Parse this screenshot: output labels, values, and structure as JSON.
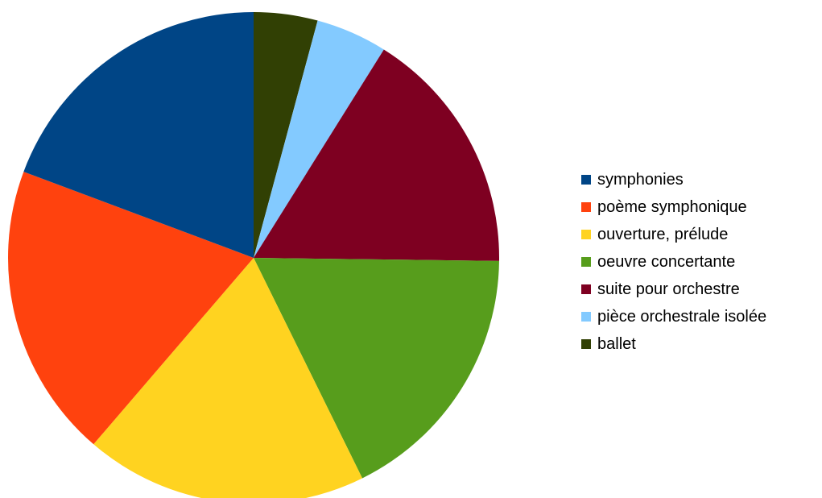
{
  "chart_data": {
    "type": "pie",
    "title": "",
    "start_angle_deg": 90,
    "direction": "clockwise",
    "legend_position": "right",
    "slices": [
      {
        "label": "ballet",
        "value": 4.2,
        "color": "#314004"
      },
      {
        "label": "pièce orchestrale isolée",
        "value": 4.7,
        "color": "#83caff"
      },
      {
        "label": "suite pour orchestre",
        "value": 16.3,
        "color": "#7e0021"
      },
      {
        "label": "oeuvre concertante",
        "value": 17.5,
        "color": "#579d1c"
      },
      {
        "label": "ouverture, prélude",
        "value": 18.6,
        "color": "#ffd320"
      },
      {
        "label": "poème symphonique",
        "value": 19.4,
        "color": "#ff420e"
      },
      {
        "label": "symphonies",
        "value": 19.3,
        "color": "#004586"
      }
    ],
    "legend_order": [
      "symphonies",
      "poème symphonique",
      "ouverture, prélude",
      "oeuvre concertante",
      "suite pour orchestre",
      "pièce orchestrale isolée",
      "ballet"
    ]
  }
}
